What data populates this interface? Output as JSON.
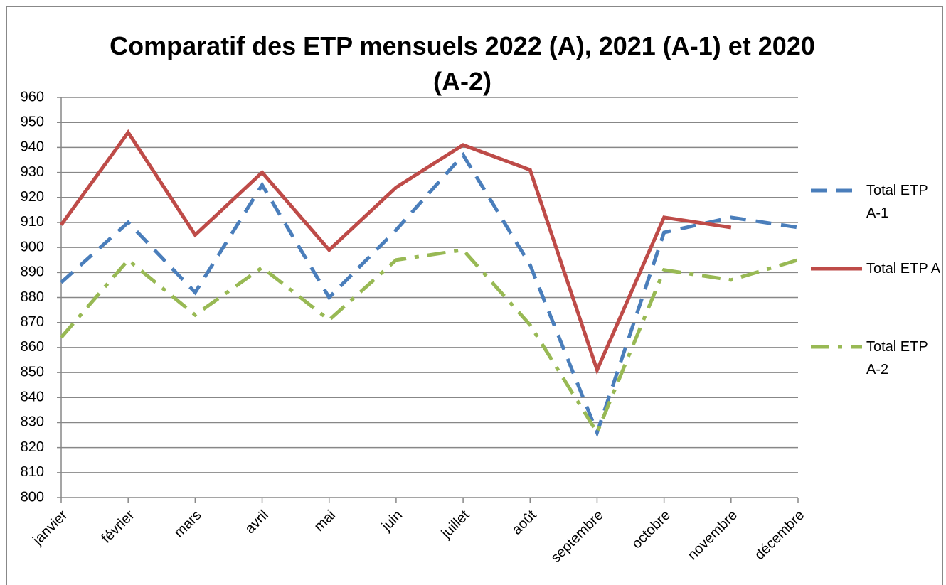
{
  "chart_data": {
    "type": "line",
    "title": "Comparatif des ETP mensuels 2022 (A), 2021 (A-1) et 2020 (A-2)",
    "categories": [
      "janvier",
      "février",
      "mars",
      "avril",
      "mai",
      "juin",
      "juillet",
      "août",
      "septembre",
      "octobre",
      "novembre",
      "décembre"
    ],
    "series": [
      {
        "name": "Total ETP A-1",
        "color": "#4a7ebb",
        "dash": "dash",
        "values": [
          886,
          910,
          882,
          925,
          880,
          907,
          937,
          893,
          826,
          906,
          912,
          908
        ]
      },
      {
        "name": "Total ETP A",
        "color": "#be4b48",
        "dash": "solid",
        "values": [
          909,
          946,
          905,
          930,
          899,
          924,
          941,
          931,
          851,
          912,
          908,
          null
        ]
      },
      {
        "name": "Total ETP A-2",
        "color": "#98b954",
        "dash": "dashdot",
        "values": [
          864,
          895,
          873,
          892,
          871,
          895,
          899,
          869,
          826,
          891,
          887,
          895
        ]
      }
    ],
    "ylim": [
      800,
      960
    ],
    "yticks": [
      800,
      810,
      820,
      830,
      840,
      850,
      860,
      870,
      880,
      890,
      900,
      910,
      920,
      930,
      940,
      950,
      960
    ],
    "grid": true,
    "legend": "right"
  }
}
